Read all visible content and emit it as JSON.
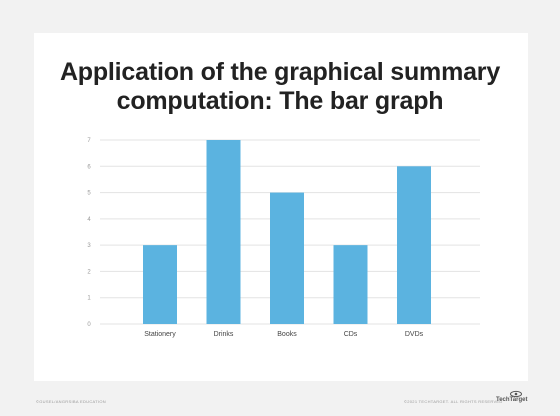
{
  "title_line1": "Application of the graphical summary",
  "title_line2": "computation: The bar graph",
  "footer_left": "©GUSEL/ANGRSIBA EDUCATION",
  "footer_right": "©2021 TECHTARGET. ALL RIGHTS RESERVED",
  "logo_text": "TechTarget",
  "colors": {
    "bar": "#5bb3e0",
    "grid": "#e3e3e3",
    "tick": "#999999",
    "category": "#444444"
  },
  "chart_data": {
    "type": "bar",
    "categories": [
      "Stationery",
      "Drinks",
      "Books",
      "CDs",
      "DVDs"
    ],
    "values": [
      3,
      7,
      5,
      3,
      6
    ],
    "ylim": [
      0,
      7
    ],
    "yticks": [
      0,
      1,
      2,
      3,
      4,
      5,
      6,
      7
    ],
    "grid": true,
    "title": "",
    "xlabel": "",
    "ylabel": ""
  }
}
